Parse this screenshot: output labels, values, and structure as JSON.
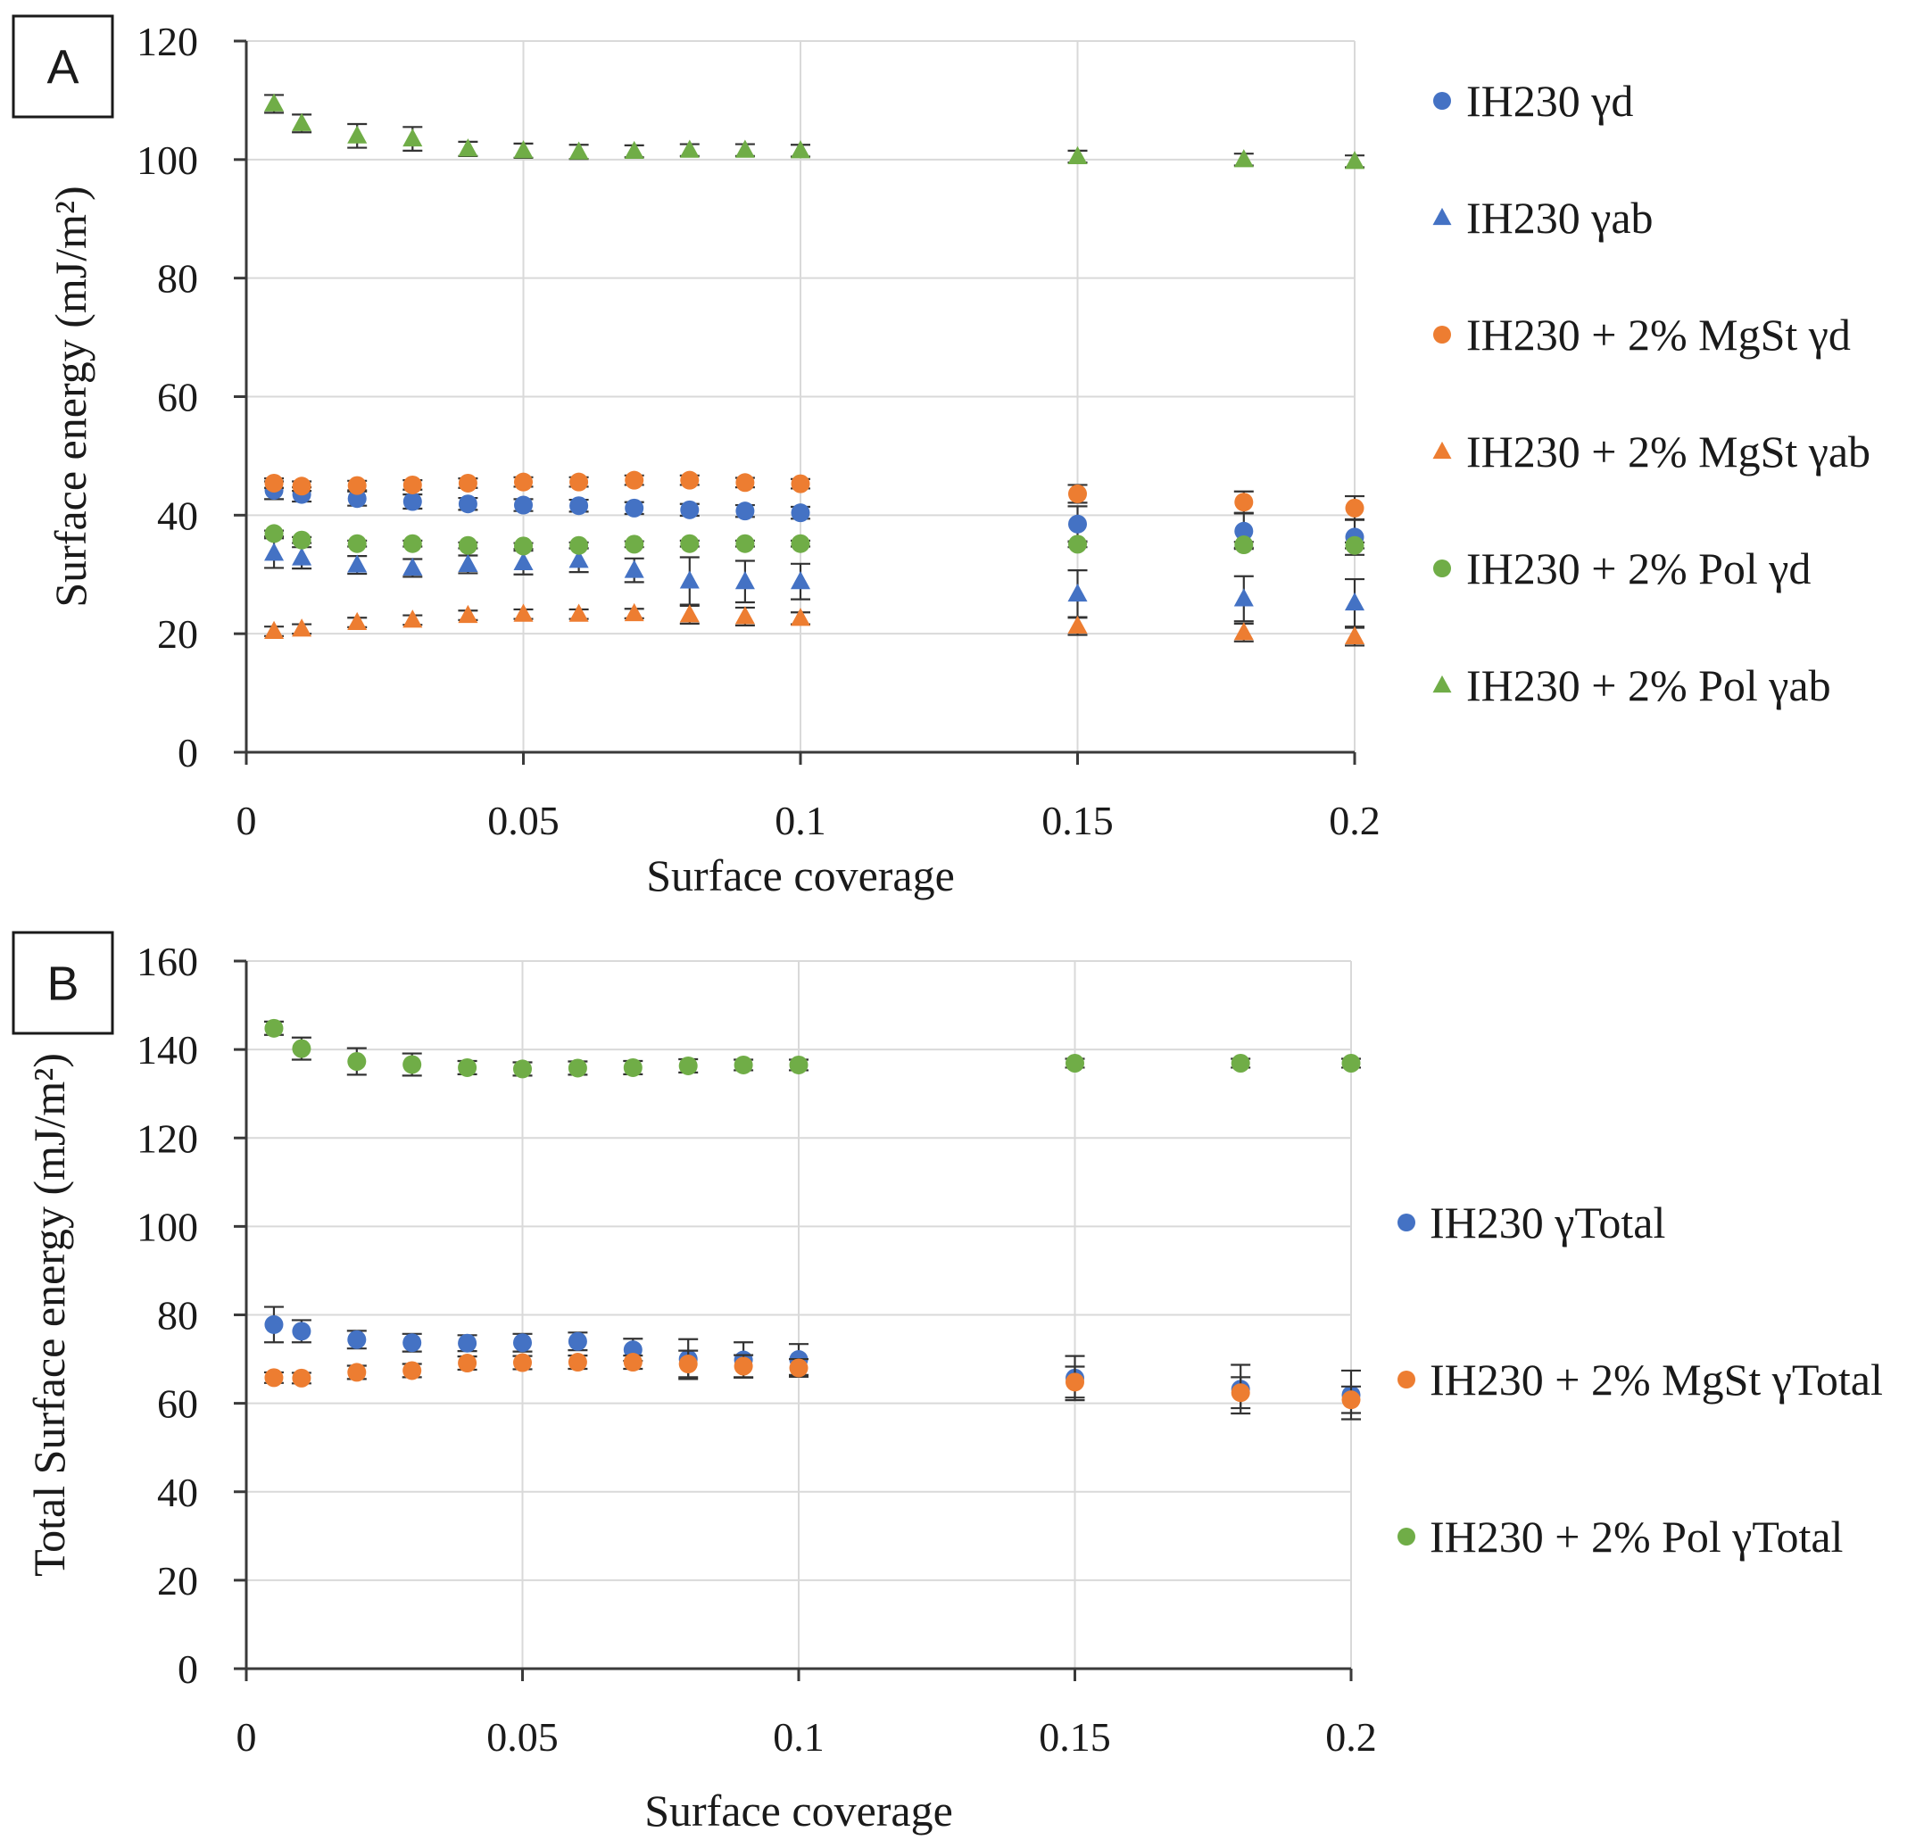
{
  "chart_data": [
    {
      "panel_label": "A",
      "type": "scatter",
      "xlabel": "Surface coverage",
      "ylabel": "Surface energy (mJ/m²)",
      "xlim": [
        0,
        0.2
      ],
      "ylim": [
        0,
        120
      ],
      "xticks": [
        0,
        0.05,
        0.1,
        0.15,
        0.2
      ],
      "xtick_labels": [
        "0",
        "0.05",
        "0.1",
        "0.15",
        "0.2"
      ],
      "yticks": [
        0,
        20,
        40,
        60,
        80,
        100,
        120
      ],
      "ytick_labels": [
        "0",
        "20",
        "40",
        "60",
        "80",
        "100",
        "120"
      ],
      "grid": true,
      "legend_position": "right",
      "x": [
        0.005,
        0.01,
        0.02,
        0.03,
        0.04,
        0.05,
        0.06,
        0.07,
        0.08,
        0.09,
        0.1,
        0.15,
        0.18,
        0.2
      ],
      "series": [
        {
          "name": "IH230 γd",
          "color": "#4472C4",
          "marker": "circle",
          "values": [
            44.2,
            43.5,
            42.8,
            42.3,
            41.9,
            41.7,
            41.6,
            41.2,
            40.9,
            40.7,
            40.4,
            38.5,
            37.3,
            36.3
          ],
          "errors": [
            1.5,
            1.2,
            1.2,
            1.2,
            1.0,
            1.0,
            1.0,
            1.0,
            1.0,
            1.0,
            1.0,
            3.0,
            3.0,
            3.0
          ]
        },
        {
          "name": "IH230 γab",
          "color": "#4472C4",
          "marker": "triangle",
          "values": [
            33.6,
            32.8,
            31.6,
            31.1,
            31.7,
            32.0,
            32.4,
            30.7,
            28.9,
            28.8,
            28.8,
            26.7,
            25.9,
            25.2
          ],
          "errors": [
            2.5,
            1.8,
            1.5,
            1.5,
            1.5,
            2.0,
            2.0,
            2.0,
            4.0,
            3.5,
            3.0,
            4.0,
            3.8,
            4.0
          ]
        },
        {
          "name": "IH230 + 2% MgSt γd",
          "color": "#ED7D31",
          "marker": "circle",
          "values": [
            45.4,
            44.9,
            45.0,
            45.1,
            45.4,
            45.6,
            45.6,
            45.9,
            45.9,
            45.5,
            45.3,
            43.6,
            42.2,
            41.2
          ],
          "errors": [
            0.8,
            0.8,
            0.8,
            0.8,
            0.8,
            0.8,
            0.8,
            0.8,
            0.8,
            0.8,
            0.8,
            1.5,
            1.8,
            2.0
          ]
        },
        {
          "name": "IH230 + 2% MgSt γab",
          "color": "#ED7D31",
          "marker": "triangle",
          "values": [
            20.4,
            20.8,
            21.9,
            22.3,
            23.1,
            23.3,
            23.3,
            23.4,
            23.2,
            22.9,
            22.6,
            21.3,
            20.2,
            19.5
          ],
          "errors": [
            0.8,
            0.8,
            0.8,
            0.8,
            0.8,
            0.8,
            0.8,
            0.8,
            1.5,
            1.5,
            1.0,
            1.5,
            1.5,
            1.5
          ]
        },
        {
          "name": "IH230 + 2% Pol γd",
          "color": "#70AD47",
          "marker": "circle",
          "values": [
            36.9,
            35.8,
            35.2,
            35.2,
            34.9,
            34.8,
            34.9,
            35.1,
            35.2,
            35.2,
            35.2,
            35.1,
            35.0,
            34.9
          ],
          "errors": [
            0.5,
            0.5,
            0.5,
            0.5,
            0.5,
            0.5,
            0.5,
            0.5,
            0.5,
            0.5,
            0.5,
            0.5,
            0.5,
            0.5
          ]
        },
        {
          "name": "IH230 + 2% Pol γab",
          "color": "#70AD47",
          "marker": "triangle",
          "values": [
            109.4,
            106.1,
            104.0,
            103.5,
            101.8,
            101.5,
            101.3,
            101.4,
            101.6,
            101.6,
            101.5,
            100.5,
            100.0,
            99.7
          ],
          "errors": [
            1.5,
            1.5,
            2.0,
            2.0,
            1.2,
            1.2,
            1.2,
            1.0,
            1.0,
            1.0,
            1.0,
            1.0,
            1.0,
            1.0
          ]
        }
      ]
    },
    {
      "panel_label": "B",
      "type": "scatter",
      "xlabel": "Surface coverage",
      "ylabel": "Total Surface energy (mJ/m²)",
      "xlim": [
        0,
        0.2
      ],
      "ylim": [
        0,
        160
      ],
      "xticks": [
        0,
        0.05,
        0.1,
        0.15,
        0.2
      ],
      "xtick_labels": [
        "0",
        "0.05",
        "0.1",
        "0.15",
        "0.2"
      ],
      "yticks": [
        0,
        20,
        40,
        60,
        80,
        100,
        120,
        140,
        160
      ],
      "ytick_labels": [
        "0",
        "20",
        "40",
        "60",
        "80",
        "100",
        "120",
        "140",
        "160"
      ],
      "grid": true,
      "legend_position": "right",
      "x": [
        0.005,
        0.01,
        0.02,
        0.03,
        0.04,
        0.05,
        0.06,
        0.07,
        0.08,
        0.09,
        0.1,
        0.15,
        0.18,
        0.2
      ],
      "series": [
        {
          "name": "IH230 γTotal",
          "color": "#4472C4",
          "marker": "circle",
          "values": [
            77.8,
            76.3,
            74.4,
            73.7,
            73.6,
            73.7,
            74.0,
            72.1,
            70.0,
            69.8,
            69.9,
            65.7,
            63.2,
            61.9
          ],
          "errors": [
            4.0,
            2.5,
            2.0,
            2.0,
            1.8,
            2.0,
            2.0,
            2.5,
            4.5,
            4.0,
            3.5,
            5.0,
            5.5,
            5.5
          ]
        },
        {
          "name": "IH230 + 2% MgSt γTotal",
          "color": "#ED7D31",
          "marker": "circle",
          "values": [
            65.8,
            65.7,
            67.0,
            67.4,
            69.1,
            69.2,
            69.3,
            69.3,
            68.9,
            68.4,
            68.0,
            64.8,
            62.4,
            60.8
          ],
          "errors": [
            1.2,
            1.2,
            1.5,
            1.5,
            1.5,
            1.5,
            1.5,
            1.5,
            3.0,
            2.5,
            2.0,
            3.5,
            3.5,
            3.0
          ]
        },
        {
          "name": "IH230 + 2% Pol γTotal",
          "color": "#70AD47",
          "marker": "circle",
          "values": [
            144.8,
            140.2,
            137.3,
            136.6,
            135.9,
            135.6,
            135.8,
            135.9,
            136.3,
            136.5,
            136.5,
            136.9,
            136.9,
            136.9
          ],
          "errors": [
            1.5,
            2.5,
            3.0,
            2.5,
            1.5,
            1.5,
            1.5,
            1.5,
            1.5,
            1.2,
            1.2,
            1.0,
            1.0,
            1.0
          ]
        }
      ]
    }
  ]
}
